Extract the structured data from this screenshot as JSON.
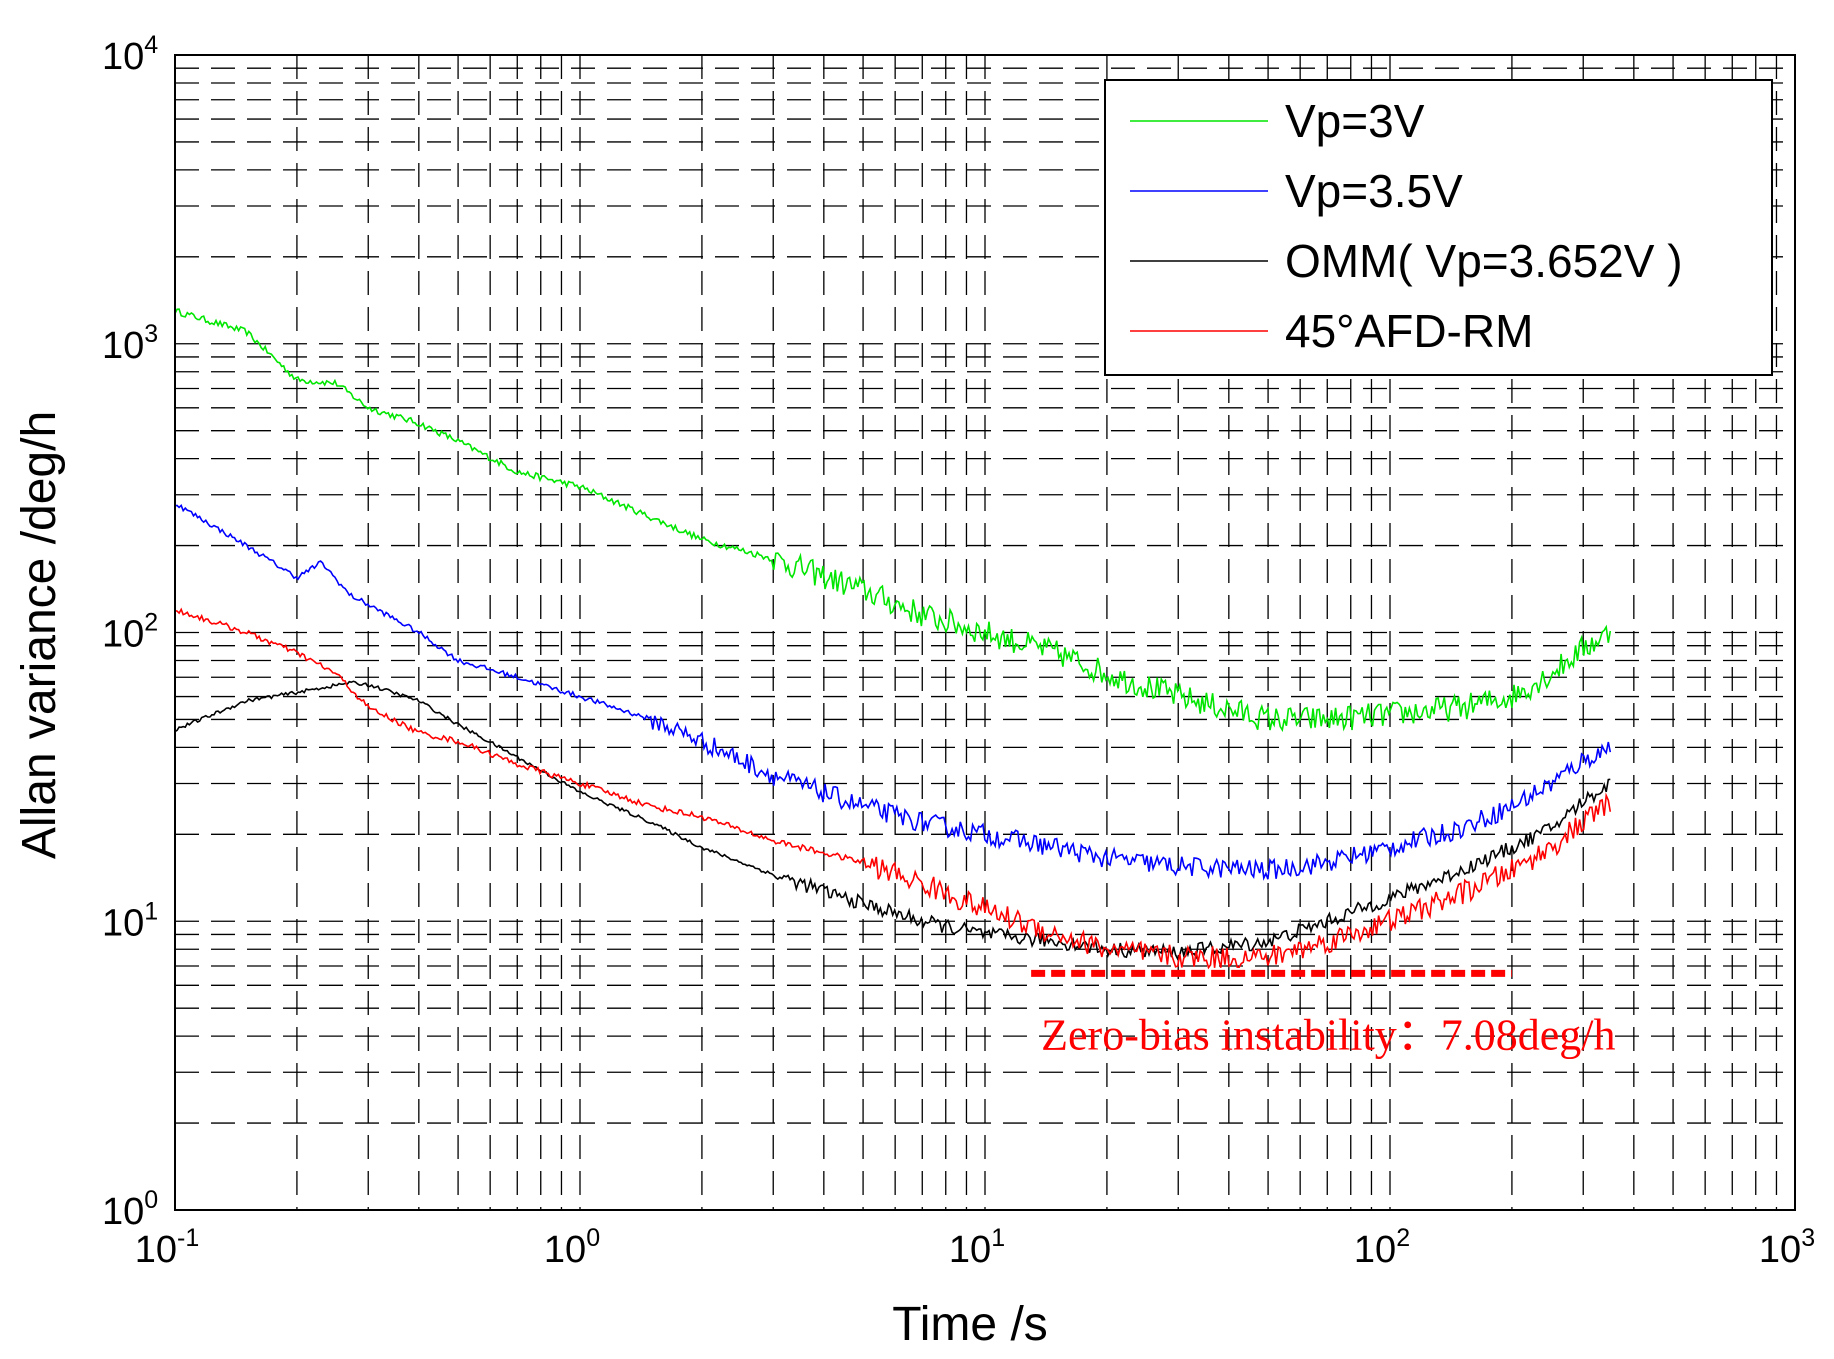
{
  "chart_data": {
    "type": "line",
    "title": "",
    "xlabel": "Time /s",
    "ylabel": "Allan variance /deg/h",
    "xscale": "log",
    "yscale": "log",
    "xlim": [
      0.1,
      1000
    ],
    "ylim": [
      1,
      10000
    ],
    "grid": true,
    "legend_position": "top-right",
    "x_ticks": [
      {
        "base": "10",
        "exp": "-1",
        "value": 0.1
      },
      {
        "base": "10",
        "exp": "0",
        "value": 1
      },
      {
        "base": "10",
        "exp": "1",
        "value": 10
      },
      {
        "base": "10",
        "exp": "2",
        "value": 100
      },
      {
        "base": "10",
        "exp": "3",
        "value": 1000
      }
    ],
    "y_ticks": [
      {
        "base": "10",
        "exp": "0",
        "value": 1
      },
      {
        "base": "10",
        "exp": "1",
        "value": 10
      },
      {
        "base": "10",
        "exp": "2",
        "value": 100
      },
      {
        "base": "10",
        "exp": "3",
        "value": 1000
      },
      {
        "base": "10",
        "exp": "4",
        "value": 10000
      }
    ],
    "series": [
      {
        "name": "Vp=3V",
        "color": "#00e600",
        "noise": 0.045,
        "noise_start": 3,
        "x": [
          0.1,
          0.15,
          0.2,
          0.25,
          0.3,
          0.4,
          0.5,
          0.7,
          1,
          1.5,
          2,
          3,
          5,
          7,
          10,
          15,
          20,
          30,
          50,
          70,
          100,
          150,
          200,
          250,
          300,
          350
        ],
        "y": [
          1300,
          1100,
          750,
          730,
          600,
          530,
          460,
          360,
          320,
          250,
          210,
          180,
          140,
          115,
          100,
          85,
          72,
          60,
          50,
          50,
          52,
          55,
          60,
          72,
          88,
          100
        ]
      },
      {
        "name": "Vp=3.5V",
        "color": "#0000ff",
        "noise": 0.035,
        "noise_start": 1.5,
        "x": [
          0.1,
          0.15,
          0.2,
          0.23,
          0.27,
          0.3,
          0.4,
          0.5,
          0.7,
          1,
          1.5,
          2,
          3,
          5,
          7,
          10,
          15,
          20,
          30,
          50,
          70,
          100,
          150,
          200,
          250,
          300,
          350
        ],
        "y": [
          280,
          200,
          155,
          175,
          135,
          125,
          100,
          80,
          70,
          60,
          50,
          42,
          32,
          25,
          22,
          20,
          18,
          16.5,
          15.5,
          15,
          16,
          18,
          21,
          25,
          30,
          36,
          40
        ]
      },
      {
        "name": "OMM( Vp=3.652V )",
        "color": "#000000",
        "noise": 0.025,
        "noise_start": 3,
        "x": [
          0.1,
          0.15,
          0.2,
          0.27,
          0.3,
          0.4,
          0.5,
          0.7,
          1,
          1.5,
          2,
          3,
          5,
          7,
          10,
          15,
          20,
          30,
          50,
          70,
          100,
          150,
          200,
          250,
          300,
          350
        ],
        "y": [
          46,
          58,
          62,
          67,
          66,
          58,
          48,
          37,
          28,
          22,
          18,
          14.5,
          11.5,
          10,
          9,
          8.5,
          8,
          7.8,
          8.5,
          10,
          12,
          15,
          18,
          21,
          26,
          30
        ]
      },
      {
        "name": "45°AFD-RM",
        "color": "#ff0000",
        "noise": 0.04,
        "noise_start": 5,
        "x": [
          0.1,
          0.15,
          0.2,
          0.25,
          0.3,
          0.4,
          0.5,
          0.7,
          1,
          1.5,
          2,
          3,
          5,
          7,
          10,
          15,
          20,
          30,
          50,
          70,
          100,
          150,
          200,
          250,
          300,
          350
        ],
        "y": [
          120,
          100,
          85,
          72,
          55,
          45,
          42,
          35,
          30,
          25,
          23,
          19,
          16,
          13.5,
          11,
          9,
          8,
          7.5,
          7.5,
          8.5,
          10,
          12.5,
          15,
          18,
          22,
          26
        ]
      }
    ],
    "reference_line": {
      "value": 6.6,
      "x_start": 13,
      "x_end": 200,
      "color": "#ff0000"
    },
    "annotation": {
      "text": "Zero-bias instability：7.08deg/h",
      "x": 13,
      "y": 3.6,
      "color": "#ff0000"
    }
  }
}
